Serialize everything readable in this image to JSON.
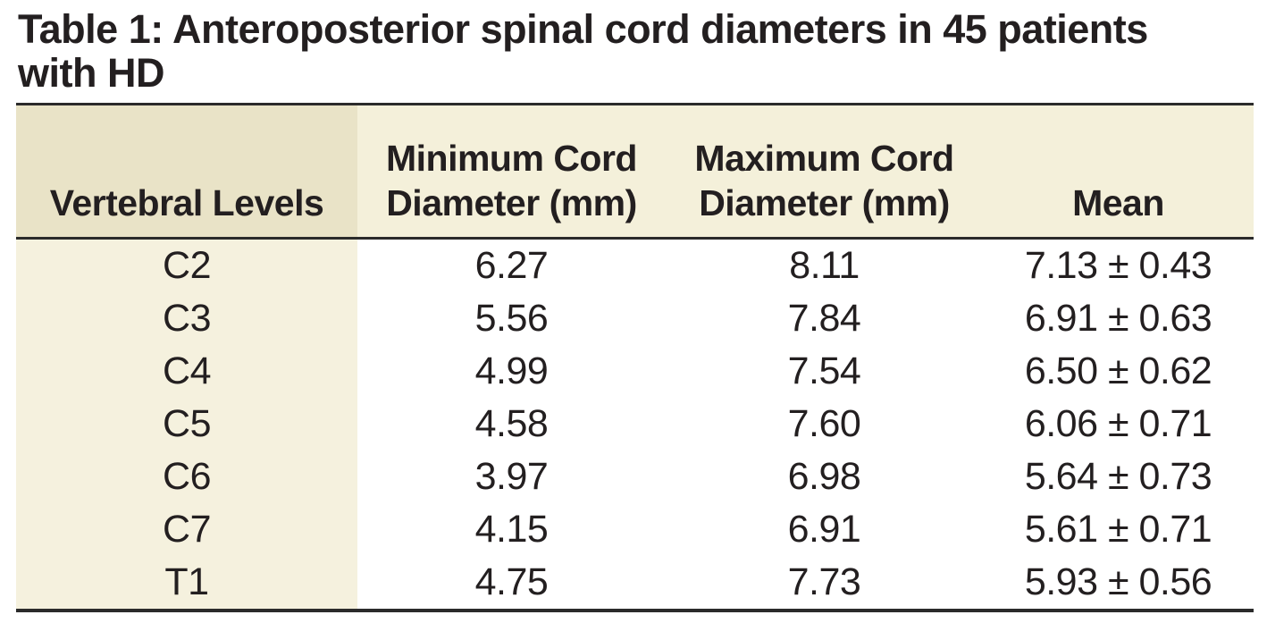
{
  "title": "Table 1: Anteroposterior spinal cord diameters in 45 patients with HD",
  "table": {
    "columns": [
      {
        "lines": [
          "Vertebral Levels"
        ]
      },
      {
        "lines": [
          "Minimum Cord",
          "Diameter (mm)"
        ]
      },
      {
        "lines": [
          "Maximum Cord",
          "Diameter (mm)"
        ]
      },
      {
        "lines": [
          "Mean"
        ]
      }
    ],
    "rows": [
      {
        "level": "C2",
        "min": "6.27",
        "max": "8.11",
        "mean": "7.13 ± 0.43"
      },
      {
        "level": "C3",
        "min": "5.56",
        "max": "7.84",
        "mean": "6.91 ± 0.63"
      },
      {
        "level": "C4",
        "min": "4.99",
        "max": "7.54",
        "mean": "6.50 ± 0.62"
      },
      {
        "level": "C5",
        "min": "4.58",
        "max": "7.60",
        "mean": "6.06 ± 0.71"
      },
      {
        "level": "C6",
        "min": "3.97",
        "max": "6.98",
        "mean": "5.64 ± 0.73"
      },
      {
        "level": "C7",
        "min": "4.15",
        "max": "6.91",
        "mean": "5.61 ± 0.71"
      },
      {
        "level": "T1",
        "min": "4.75",
        "max": "7.73",
        "mean": "5.93 ± 0.56"
      }
    ]
  },
  "colors": {
    "header_first_col_bg": "#e9e3c7",
    "header_bg": "#f4f0da",
    "body_first_col_bg": "#f5f1de",
    "rule": "#2b2b2b",
    "text": "#231f20"
  }
}
